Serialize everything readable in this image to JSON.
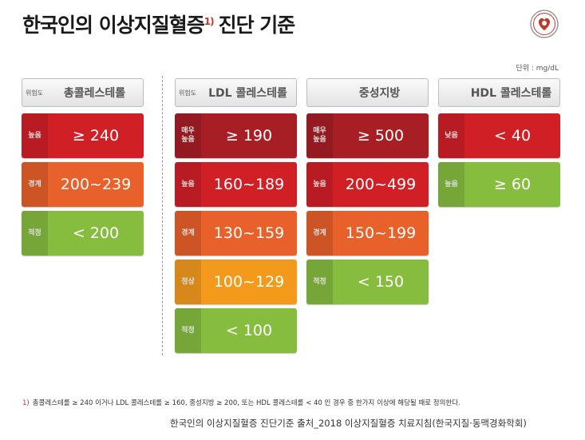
{
  "title": {
    "text": "한국인의 이상지질혈증",
    "sup": "1)",
    "text2": "진단 기준"
  },
  "unit": "단위 : mg/dL",
  "columns": [
    {
      "tag": "위험도",
      "name": "총콜레스테롤",
      "rows": [
        {
          "level": "높음",
          "value": "≥ 240",
          "color": "#d11f26"
        },
        {
          "level": "경계",
          "value": "200~239",
          "color": "#e9612a"
        },
        {
          "level": "적정",
          "value": "< 200",
          "color": "#86bd3f"
        }
      ]
    },
    {
      "tag": "위험도",
      "name": "LDL 콜레스테롤",
      "rows": [
        {
          "level": "매우 높음",
          "value": "≥ 190",
          "color": "#a81e25"
        },
        {
          "level": "높음",
          "value": "160~189",
          "color": "#d11f26"
        },
        {
          "level": "경계",
          "value": "130~159",
          "color": "#e9612a"
        },
        {
          "level": "정상",
          "value": "100~129",
          "color": "#f39a1d"
        },
        {
          "level": "적정",
          "value": "< 100",
          "color": "#86bd3f"
        }
      ]
    },
    {
      "tag": "",
      "name": "중성지방",
      "rows": [
        {
          "level": "매우 높음",
          "value": "≥ 500",
          "color": "#a81e25"
        },
        {
          "level": "높음",
          "value": "200~499",
          "color": "#d11f26"
        },
        {
          "level": "경계",
          "value": "150~199",
          "color": "#e9612a"
        },
        {
          "level": "적정",
          "value": "< 150",
          "color": "#86bd3f"
        }
      ]
    },
    {
      "tag": "",
      "name": "HDL 콜레스테롤",
      "rows": [
        {
          "level": "낮음",
          "value": "< 40",
          "color": "#d11f26"
        },
        {
          "level": "높음",
          "value": "≥ 60",
          "color": "#86bd3f"
        }
      ]
    }
  ],
  "footnote": {
    "mark": "1)",
    "text": "총콜레스테롤 ≥ 240 이거나 LDL 콜레스테롤 ≥ 160, 중성지방 ≥ 200, 또는 HDL 콜레스테롤 < 40 인 경우 중 한가지 이상에 해당될 때로 정의한다."
  },
  "caption": "한국인의 이상지질혈증 진단기준 출처_2018 이상지질혈증 치료지침(한국지질·동맥경화학회)"
}
